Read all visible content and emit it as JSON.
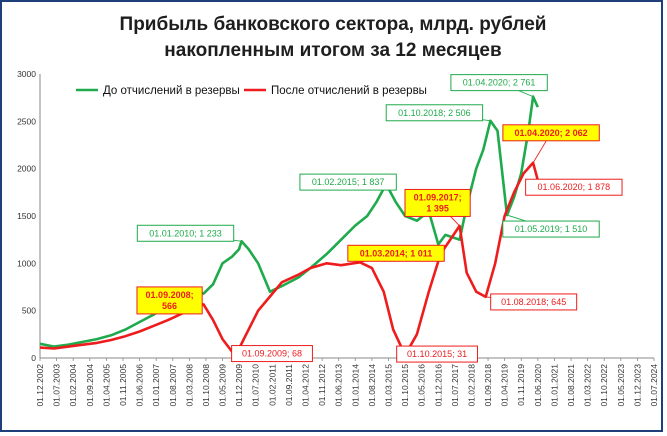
{
  "chart_data": {
    "type": "line",
    "title": "Прибыль банковского сектора, млрд. рублей",
    "subtitle": "накопленным итогом за 12 месяцев",
    "ylim": [
      0,
      3000
    ],
    "y_ticks": [
      0,
      500,
      1000,
      1500,
      2000,
      2500,
      3000
    ],
    "x_range": [
      "2002-12",
      "2024-07"
    ],
    "x_tick_labels": [
      "01.12.2002",
      "01.07.2003",
      "01.02.2004",
      "01.09.2004",
      "01.04.2005",
      "01.11.2005",
      "01.06.2006",
      "01.01.2007",
      "01.08.2007",
      "01.03.2008",
      "01.10.2008",
      "01.05.2009",
      "01.12.2009",
      "01.07.2010",
      "01.02.2011",
      "01.09.2011",
      "01.04.2012",
      "01.11.2012",
      "01.06.2013",
      "01.01.2014",
      "01.08.2014",
      "01.03.2015",
      "01.10.2015",
      "01.05.2016",
      "01.12.2016",
      "01.07.2017",
      "01.02.2018",
      "01.09.2018",
      "01.04.2019",
      "01.11.2019",
      "01.06.2020",
      "01.01.2021",
      "01.08.2021",
      "01.03.2022",
      "01.10.2022",
      "01.05.2023",
      "01.12.2023",
      "01.07.2024"
    ],
    "legend_position": "top-left",
    "grid": false,
    "series": [
      {
        "name": "До отчислений в резервы",
        "color": "#1faa4b",
        "points": [
          [
            "2002-12",
            150
          ],
          [
            "2003-06",
            120
          ],
          [
            "2003-12",
            140
          ],
          [
            "2004-06",
            170
          ],
          [
            "2004-12",
            200
          ],
          [
            "2005-06",
            240
          ],
          [
            "2005-12",
            300
          ],
          [
            "2006-06",
            380
          ],
          [
            "2006-12",
            460
          ],
          [
            "2007-06",
            550
          ],
          [
            "2007-12",
            640
          ],
          [
            "2008-04",
            720
          ],
          [
            "2008-09",
            680
          ],
          [
            "2009-01",
            780
          ],
          [
            "2009-05",
            1000
          ],
          [
            "2009-09",
            1070
          ],
          [
            "2009-12",
            1150
          ],
          [
            "2010-01",
            1233
          ],
          [
            "2010-04",
            1150
          ],
          [
            "2010-08",
            1000
          ],
          [
            "2011-01",
            700
          ],
          [
            "2011-06",
            760
          ],
          [
            "2012-01",
            850
          ],
          [
            "2012-06",
            950
          ],
          [
            "2013-01",
            1100
          ],
          [
            "2013-07",
            1250
          ],
          [
            "2014-01",
            1400
          ],
          [
            "2014-06",
            1500
          ],
          [
            "2014-10",
            1650
          ],
          [
            "2015-02",
            1837
          ],
          [
            "2015-06",
            1650
          ],
          [
            "2015-10",
            1500
          ],
          [
            "2016-03",
            1450
          ],
          [
            "2016-08",
            1550
          ],
          [
            "2016-12",
            1200
          ],
          [
            "2017-03",
            1300
          ],
          [
            "2017-09",
            1250
          ],
          [
            "2017-12",
            1600
          ],
          [
            "2018-04",
            2000
          ],
          [
            "2018-07",
            2200
          ],
          [
            "2018-10",
            2506
          ],
          [
            "2019-01",
            2400
          ],
          [
            "2019-05",
            1510
          ],
          [
            "2019-08",
            1700
          ],
          [
            "2019-11",
            1950
          ],
          [
            "2020-02",
            2400
          ],
          [
            "2020-04",
            2761
          ],
          [
            "2020-06",
            2650
          ]
        ]
      },
      {
        "name": "После отчислений в резервы",
        "color": "#ee1c1c",
        "points": [
          [
            "2002-12",
            110
          ],
          [
            "2003-06",
            100
          ],
          [
            "2003-12",
            120
          ],
          [
            "2004-06",
            140
          ],
          [
            "2004-12",
            160
          ],
          [
            "2005-06",
            190
          ],
          [
            "2005-12",
            230
          ],
          [
            "2006-06",
            280
          ],
          [
            "2006-12",
            340
          ],
          [
            "2007-06",
            400
          ],
          [
            "2007-12",
            470
          ],
          [
            "2008-04",
            520
          ],
          [
            "2008-09",
            566
          ],
          [
            "2009-01",
            400
          ],
          [
            "2009-05",
            200
          ],
          [
            "2009-09",
            68
          ],
          [
            "2009-12",
            100
          ],
          [
            "2010-04",
            300
          ],
          [
            "2010-08",
            500
          ],
          [
            "2011-01",
            650
          ],
          [
            "2011-06",
            800
          ],
          [
            "2012-01",
            880
          ],
          [
            "2012-06",
            950
          ],
          [
            "2013-01",
            1000
          ],
          [
            "2013-07",
            980
          ],
          [
            "2014-03",
            1011
          ],
          [
            "2014-08",
            950
          ],
          [
            "2015-01",
            700
          ],
          [
            "2015-05",
            300
          ],
          [
            "2015-10",
            31
          ],
          [
            "2016-03",
            250
          ],
          [
            "2016-08",
            700
          ],
          [
            "2017-01",
            1100
          ],
          [
            "2017-09",
            1395
          ],
          [
            "2017-12",
            900
          ],
          [
            "2018-04",
            700
          ],
          [
            "2018-08",
            645
          ],
          [
            "2018-12",
            1000
          ],
          [
            "2019-04",
            1500
          ],
          [
            "2019-08",
            1750
          ],
          [
            "2019-12",
            1950
          ],
          [
            "2020-04",
            2062
          ],
          [
            "2020-06",
            1878
          ]
        ]
      }
    ],
    "annotations": [
      {
        "text": "01.01.2010; 1 233",
        "series": 0,
        "x": "2010-01",
        "y": 1233,
        "highlight": false
      },
      {
        "text": "01.02.2015; 1 837",
        "series": 0,
        "x": "2015-02",
        "y": 1837,
        "highlight": false
      },
      {
        "text": "01.10.2018; 2 506",
        "series": 0,
        "x": "2018-10",
        "y": 2506,
        "highlight": false
      },
      {
        "text": "01.04.2020; 2 761",
        "series": 0,
        "x": "2020-04",
        "y": 2761,
        "highlight": false
      },
      {
        "text": "01.05.2019; 1 510",
        "series": 0,
        "x": "2019-05",
        "y": 1510,
        "highlight": false
      },
      {
        "text": "01.09.2008;\n566",
        "series": 1,
        "x": "2008-09",
        "y": 566,
        "highlight": true
      },
      {
        "text": "01.09.2009; 68",
        "series": 1,
        "x": "2009-09",
        "y": 68,
        "highlight": false
      },
      {
        "text": "01.03.2014; 1 011",
        "series": 1,
        "x": "2014-03",
        "y": 1011,
        "highlight": true
      },
      {
        "text": "01.10.2015; 31",
        "series": 1,
        "x": "2015-10",
        "y": 31,
        "highlight": false
      },
      {
        "text": "01.09.2017;\n1 395",
        "series": 1,
        "x": "2017-09",
        "y": 1395,
        "highlight": true
      },
      {
        "text": "01.08.2018; 645",
        "series": 1,
        "x": "2018-08",
        "y": 645,
        "highlight": false
      },
      {
        "text": "01.04.2020; 2 062",
        "series": 1,
        "x": "2020-04",
        "y": 2062,
        "highlight": true
      },
      {
        "text": "01.06.2020; 1 878",
        "series": 1,
        "x": "2020-06",
        "y": 1878,
        "highlight": false
      }
    ]
  }
}
